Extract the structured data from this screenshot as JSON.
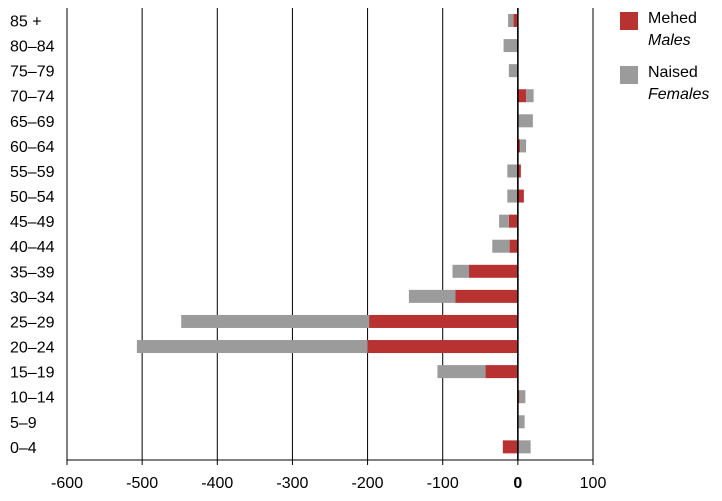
{
  "chart_data": {
    "type": "bar",
    "orientation": "horizontal",
    "stacked": true,
    "categories": [
      "85 +",
      "80–84",
      "75–79",
      "70–74",
      "65–69",
      "60–64",
      "55–59",
      "50–54",
      "45–49",
      "40–44",
      "35–39",
      "30–34",
      "25–29",
      "20–24",
      "15–19",
      "10–14",
      "5–9",
      "0–4"
    ],
    "series": [
      {
        "name_et": "Mehed",
        "name_en": "Males",
        "color": "#b83232",
        "values": [
          -6,
          -1,
          0,
          11,
          1,
          3,
          4,
          8,
          -12,
          -11,
          -65,
          -83,
          -198,
          -200,
          -43,
          2,
          1,
          -20
        ]
      },
      {
        "name_et": "Naised",
        "name_en": "Females",
        "color": "#9b9b9b",
        "values": [
          -7,
          -18,
          -12,
          10,
          19,
          8,
          -14,
          -14,
          -13,
          -23,
          -22,
          -62,
          -250,
          -307,
          -64,
          8,
          8,
          17
        ]
      }
    ],
    "xlim": [
      -600,
      100
    ],
    "xticks": [
      "-600",
      "-500",
      "-400",
      "-300",
      "-200",
      "-100",
      "0",
      "100"
    ],
    "grid": "vertical",
    "legend": "top-right",
    "title": "",
    "xlabel": "",
    "ylabel": ""
  }
}
